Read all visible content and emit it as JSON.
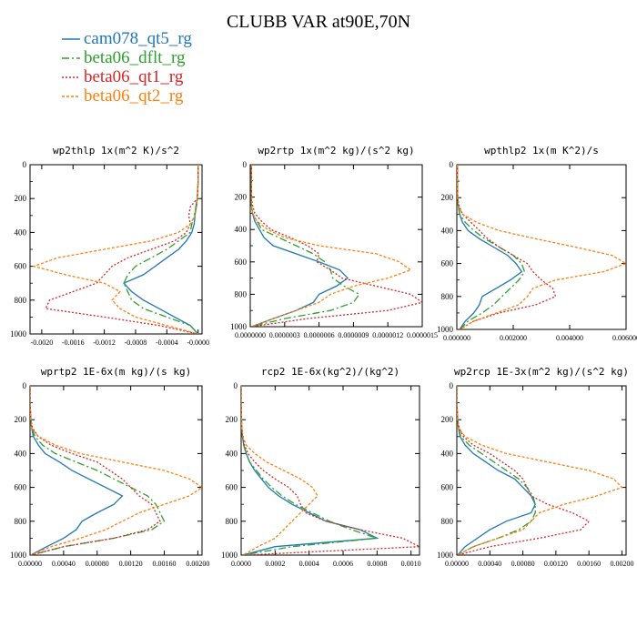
{
  "figure_title": "CLUBB VAR at90E,70N",
  "legend": [
    {
      "name": "cam078_qt5_rg",
      "color": "#1f77b4"
    },
    {
      "name": "beta06_dflt_rg",
      "color": "#2ca02c"
    },
    {
      "name": "beta06_qt1_rg",
      "color": "#d62728"
    },
    {
      "name": "beta06_qt2_rg",
      "color": "#ff7f0e"
    }
  ],
  "chart_data": [
    {
      "type": "line",
      "title": "wp2thlp  1x(m^2 K)/s^2",
      "xlim": [
        -0.00215,
        5e-05
      ],
      "ylim": [
        0,
        1000
      ],
      "y_inverted": true,
      "xticks": [
        -0.002,
        -0.0016,
        -0.0012,
        -0.0008,
        -0.0004,
        -0.0
      ],
      "xtick_labels": [
        "-0.0020",
        "-0.0016",
        "-0.0012",
        "-0.0008",
        "-0.0004",
        "-0.0000"
      ],
      "yticks": [
        0,
        200,
        400,
        600,
        800,
        1000
      ],
      "y": [
        0,
        100,
        200,
        250,
        300,
        350,
        400,
        450,
        500,
        550,
        600,
        650,
        700,
        750,
        800,
        850,
        900,
        950,
        1000
      ],
      "series": [
        {
          "name": "cam078_qt5_rg",
          "x": [
            0,
            0,
            -1e-05,
            -3e-05,
            -4e-05,
            -5e-05,
            -8e-05,
            -0.00015,
            -0.00025,
            -0.0004,
            -0.00055,
            -0.0007,
            -0.00095,
            -0.00085,
            -0.0007,
            -0.0005,
            -0.0003,
            -0.0001,
            0
          ]
        },
        {
          "name": "beta06_dflt_rg",
          "x": [
            0,
            0,
            -1e-05,
            -2e-05,
            -5e-05,
            -8e-05,
            -0.0001,
            -0.00025,
            -0.0004,
            -0.0006,
            -0.0008,
            -0.0009,
            -0.00095,
            -0.0009,
            -0.00085,
            -0.0007,
            -0.0004,
            -0.0001,
            0
          ]
        },
        {
          "name": "beta06_qt1_rg",
          "x": [
            0,
            0,
            -1e-05,
            -0.0001,
            -0.00012,
            -0.0001,
            -0.00015,
            -0.0003,
            -0.0006,
            -0.0009,
            -0.0011,
            -0.0012,
            -0.0013,
            -0.0016,
            -0.0019,
            -0.00195,
            -0.0012,
            -0.0005,
            0
          ]
        },
        {
          "name": "beta06_qt2_rg",
          "x": [
            0,
            0,
            -1e-05,
            -2e-05,
            -4e-05,
            -0.0001,
            -0.00025,
            -0.0006,
            -0.0012,
            -0.0018,
            -0.0021,
            -0.0017,
            -0.0012,
            -0.001,
            -0.0011,
            -0.001,
            -0.0008,
            -0.0004,
            0
          ]
        }
      ]
    },
    {
      "type": "line",
      "title": "wp2rtp  1x(m^2 kg)/(s^2 kg)",
      "xlim": [
        0,
        1.5e-06
      ],
      "ylim": [
        0,
        1000
      ],
      "y_inverted": true,
      "xticks": [
        0,
        3e-07,
        6e-07,
        9e-07,
        1.2e-06,
        1.5e-06
      ],
      "xtick_labels": [
        "0.0000000",
        "0.0000003",
        "0.0000006",
        "0.0000009",
        "0.0000012",
        "0.0000015"
      ],
      "yticks": [
        0,
        200,
        400,
        600,
        800,
        1000
      ],
      "y": [
        0,
        100,
        200,
        250,
        300,
        350,
        400,
        450,
        500,
        550,
        600,
        650,
        700,
        750,
        800,
        850,
        900,
        950,
        1000
      ],
      "series": [
        {
          "name": "cam078_qt5_rg",
          "x": [
            1e-08,
            1e-08,
            1e-08,
            1e-08,
            2e-08,
            4e-08,
            8e-08,
            1.2e-07,
            2e-07,
            4e-07,
            6e-07,
            7.8e-07,
            8.5e-07,
            7.5e-07,
            6e-07,
            5.5e-07,
            4e-07,
            2e-07,
            1e-08
          ]
        },
        {
          "name": "beta06_dflt_rg",
          "x": [
            1e-08,
            1e-08,
            1e-08,
            1e-08,
            2e-08,
            6e-08,
            1e-07,
            2.5e-07,
            4e-07,
            5.5e-07,
            6.5e-07,
            7e-07,
            7.2e-07,
            8.2e-07,
            9.5e-07,
            9e-07,
            7e-07,
            3e-07,
            1e-08
          ]
        },
        {
          "name": "beta06_qt1_rg",
          "x": [
            1e-08,
            1e-08,
            1e-08,
            2e-08,
            4e-08,
            1e-07,
            1.8e-07,
            3.5e-07,
            5e-07,
            6e-07,
            5.8e-07,
            7e-07,
            8e-07,
            1.1e-06,
            1.4e-06,
            1.5e-06,
            1.2e-06,
            5e-07,
            1e-08
          ]
        },
        {
          "name": "beta06_qt2_rg",
          "x": [
            1e-08,
            1e-08,
            1e-08,
            1e-08,
            2e-08,
            6e-08,
            1.5e-07,
            3e-07,
            6e-07,
            1.1e-06,
            1.3e-06,
            1.4e-06,
            1.2e-06,
            9e-07,
            7e-07,
            6e-07,
            4e-07,
            2e-07,
            1e-08
          ]
        }
      ]
    },
    {
      "type": "line",
      "title": "wpthlp2  1x(m K^2)/s",
      "xlim": [
        0,
        0.006
      ],
      "ylim": [
        0,
        1000
      ],
      "y_inverted": true,
      "xticks": [
        0,
        0.002,
        0.004,
        0.006
      ],
      "xtick_labels": [
        "0.000000",
        "0.002000",
        "0.004000",
        "0.006000"
      ],
      "yticks": [
        0,
        200,
        400,
        600,
        800,
        1000
      ],
      "y": [
        0,
        100,
        200,
        250,
        300,
        350,
        400,
        450,
        500,
        550,
        600,
        650,
        700,
        750,
        800,
        850,
        900,
        950,
        1000
      ],
      "series": [
        {
          "name": "cam078_qt5_rg",
          "x": [
            2e-05,
            2e-05,
            3e-05,
            5e-05,
            0.0001,
            0.0002,
            0.0004,
            0.0008,
            0.0013,
            0.0018,
            0.0021,
            0.0023,
            0.0019,
            0.0014,
            0.0009,
            0.0008,
            0.0006,
            0.0003,
            0.0001
          ]
        },
        {
          "name": "beta06_dflt_rg",
          "x": [
            2e-05,
            2e-05,
            3e-05,
            5e-05,
            0.0001,
            0.0003,
            0.0006,
            0.001,
            0.0015,
            0.002,
            0.0023,
            0.0024,
            0.0022,
            0.0019,
            0.0016,
            0.0013,
            0.0009,
            0.0004,
            0.0001
          ]
        },
        {
          "name": "beta06_qt1_rg",
          "x": [
            2e-05,
            2e-05,
            3e-05,
            8e-05,
            0.0002,
            0.0005,
            0.0008,
            0.0011,
            0.0015,
            0.002,
            0.0025,
            0.0027,
            0.003,
            0.0034,
            0.0035,
            0.0028,
            0.0015,
            0.0006,
            0.0001
          ]
        },
        {
          "name": "beta06_qt2_rg",
          "x": [
            2e-05,
            2e-05,
            3e-05,
            5e-05,
            0.0002,
            0.0007,
            0.0015,
            0.0028,
            0.0042,
            0.0055,
            0.006,
            0.0052,
            0.0035,
            0.0027,
            0.0025,
            0.0022,
            0.0014,
            0.0006,
            0.0001
          ]
        }
      ]
    },
    {
      "type": "line",
      "title": "wprtp2  1E-6x(m kg)/(s kg)",
      "xlim": [
        0,
        0.00205
      ],
      "ylim": [
        0,
        1000
      ],
      "y_inverted": true,
      "xticks": [
        0,
        0.0004,
        0.0008,
        0.0012,
        0.0016,
        0.002
      ],
      "xtick_labels": [
        "0.00000",
        "0.00040",
        "0.00080",
        "0.00120",
        "0.00160",
        "0.00200"
      ],
      "yticks": [
        0,
        200,
        400,
        600,
        800,
        1000
      ],
      "y": [
        0,
        100,
        200,
        250,
        300,
        350,
        400,
        450,
        500,
        550,
        600,
        650,
        700,
        750,
        800,
        850,
        900,
        950,
        1000
      ],
      "series": [
        {
          "name": "cam078_qt5_rg",
          "x": [
            0,
            0,
            1e-05,
            2e-05,
            4e-05,
            0.0001,
            0.00018,
            0.00035,
            0.0005,
            0.0007,
            0.0009,
            0.0011,
            0.001,
            0.0008,
            0.00062,
            0.00055,
            0.0004,
            0.0002,
            1e-05
          ]
        },
        {
          "name": "beta06_dflt_rg",
          "x": [
            0,
            0,
            1e-05,
            2e-05,
            6e-05,
            0.00015,
            0.0003,
            0.00055,
            0.0008,
            0.001,
            0.0012,
            0.0014,
            0.0015,
            0.00155,
            0.0016,
            0.00145,
            0.001,
            0.0004,
            1e-05
          ]
        },
        {
          "name": "beta06_qt1_rg",
          "x": [
            0,
            0,
            1e-05,
            3e-05,
            0.0001,
            0.00025,
            0.0005,
            0.0008,
            0.00095,
            0.0011,
            0.0012,
            0.0013,
            0.00145,
            0.0015,
            0.00155,
            0.0014,
            0.001,
            0.0004,
            1e-05
          ]
        },
        {
          "name": "beta06_qt2_rg",
          "x": [
            0,
            0,
            1e-05,
            2e-05,
            0.0001,
            0.0003,
            0.0006,
            0.0011,
            0.0016,
            0.0019,
            0.00205,
            0.0019,
            0.0016,
            0.0013,
            0.0011,
            0.0009,
            0.0006,
            0.00025,
            1e-05
          ]
        }
      ]
    },
    {
      "type": "line",
      "title": "rcp2  1E-6x(kg^2)/(kg^2)",
      "xlim": [
        0,
        0.00105
      ],
      "ylim": [
        0,
        1000
      ],
      "y_inverted": true,
      "xticks": [
        0,
        0.0002,
        0.0004,
        0.0006,
        0.0008,
        0.001
      ],
      "xtick_labels": [
        "0.0000",
        "0.0002",
        "0.0004",
        "0.0006",
        "0.0008",
        "0.0010"
      ],
      "yticks": [
        0,
        200,
        400,
        600,
        800,
        1000
      ],
      "y": [
        0,
        100,
        200,
        250,
        300,
        350,
        400,
        450,
        500,
        550,
        600,
        650,
        700,
        750,
        800,
        850,
        900,
        950,
        1000
      ],
      "series": [
        {
          "name": "cam078_qt5_rg",
          "x": [
            0,
            0,
            2e-06,
            4e-06,
            8e-06,
            1.5e-05,
            3e-05,
            5e-05,
            8e-05,
            0.00012,
            0.00016,
            0.00022,
            0.0003,
            0.0004,
            0.0005,
            0.0007,
            0.0008,
            0.0002,
            1e-05
          ]
        },
        {
          "name": "beta06_dflt_rg",
          "x": [
            0,
            0,
            2e-06,
            4e-06,
            8e-06,
            1.5e-05,
            3e-05,
            5e-05,
            9e-05,
            0.00013,
            0.00018,
            0.00024,
            0.00032,
            0.00042,
            0.00052,
            0.00065,
            0.0008,
            0.0003,
            1e-05
          ]
        },
        {
          "name": "beta06_qt1_rg",
          "x": [
            0,
            0,
            2e-06,
            4e-06,
            8e-06,
            2e-05,
            4e-05,
            8e-05,
            0.00013,
            0.0002,
            0.00028,
            0.00033,
            0.00035,
            0.00038,
            0.0005,
            0.0007,
            0.00095,
            0.00105,
            2e-05
          ]
        },
        {
          "name": "beta06_qt2_rg",
          "x": [
            0,
            0,
            2e-06,
            4e-06,
            1e-05,
            3e-05,
            8e-05,
            0.00015,
            0.00025,
            0.00035,
            0.00042,
            0.00045,
            0.0004,
            0.00035,
            0.0003,
            0.00025,
            0.0002,
            0.0001,
            1e-05
          ]
        }
      ]
    },
    {
      "type": "line",
      "title": "wp2rcp  1E-3x(m^2 kg)/(s^2 kg)",
      "xlim": [
        0,
        0.00205
      ],
      "ylim": [
        0,
        1000
      ],
      "y_inverted": true,
      "xticks": [
        0,
        0.0004,
        0.0008,
        0.0012,
        0.0016,
        0.002
      ],
      "xtick_labels": [
        "0.00000",
        "0.00040",
        "0.00080",
        "0.00120",
        "0.00160",
        "0.00200"
      ],
      "yticks": [
        0,
        200,
        400,
        600,
        800,
        1000
      ],
      "y": [
        0,
        100,
        200,
        250,
        300,
        350,
        400,
        450,
        500,
        550,
        600,
        650,
        700,
        750,
        800,
        850,
        900,
        950,
        1000
      ],
      "series": [
        {
          "name": "cam078_qt5_rg",
          "x": [
            0,
            0,
            1e-05,
            2e-05,
            4e-05,
            0.0001,
            0.0002,
            0.00035,
            0.0005,
            0.0007,
            0.0008,
            0.0009,
            0.00095,
            0.0009,
            0.0006,
            0.0004,
            0.00025,
            0.0001,
            1e-05
          ]
        },
        {
          "name": "beta06_dflt_rg",
          "x": [
            0,
            0,
            1e-05,
            2e-05,
            5e-05,
            0.00015,
            0.0003,
            0.00045,
            0.0006,
            0.00075,
            0.00085,
            0.00092,
            0.00095,
            0.00095,
            0.0009,
            0.00075,
            0.0005,
            0.0002,
            1e-05
          ]
        },
        {
          "name": "beta06_qt1_rg",
          "x": [
            0,
            0,
            1e-05,
            3e-05,
            8e-05,
            0.0002,
            0.0004,
            0.00055,
            0.0007,
            0.0008,
            0.00085,
            0.0009,
            0.0011,
            0.0014,
            0.0016,
            0.0015,
            0.001,
            0.0004,
            1e-05
          ]
        },
        {
          "name": "beta06_qt2_rg",
          "x": [
            0,
            0,
            1e-05,
            2e-05,
            0.0001,
            0.0003,
            0.0006,
            0.0011,
            0.0016,
            0.0019,
            0.002,
            0.0017,
            0.0013,
            0.001,
            0.0009,
            0.0008,
            0.0005,
            0.0002,
            1e-05
          ]
        }
      ]
    }
  ]
}
